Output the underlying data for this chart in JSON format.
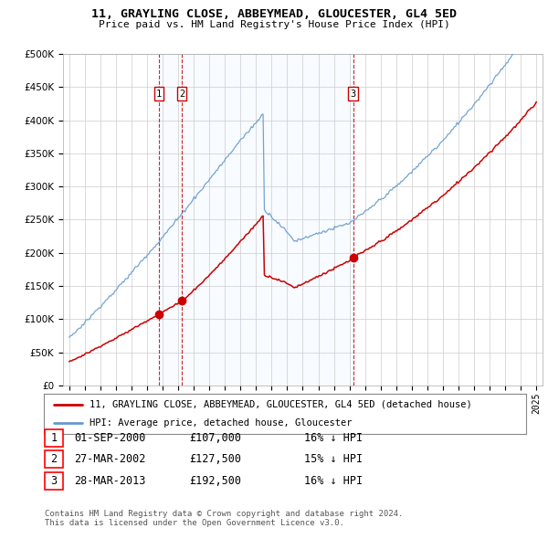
{
  "title": "11, GRAYLING CLOSE, ABBEYMEAD, GLOUCESTER, GL4 5ED",
  "subtitle": "Price paid vs. HM Land Registry's House Price Index (HPI)",
  "legend_house": "11, GRAYLING CLOSE, ABBEYMEAD, GLOUCESTER, GL4 5ED (detached house)",
  "legend_hpi": "HPI: Average price, detached house, Gloucester",
  "house_color": "#cc0000",
  "hpi_color": "#6699cc",
  "hpi_fill_color": "#ddeeff",
  "sale_dates": [
    2000.75,
    2002.23,
    2013.23
  ],
  "sale_prices": [
    107000,
    127500,
    192500
  ],
  "sale_labels": [
    "1",
    "2",
    "3"
  ],
  "table_rows": [
    [
      "1",
      "01-SEP-2000",
      "£107,000",
      "16% ↓ HPI"
    ],
    [
      "2",
      "27-MAR-2002",
      "£127,500",
      "15% ↓ HPI"
    ],
    [
      "3",
      "28-MAR-2013",
      "£192,500",
      "16% ↓ HPI"
    ]
  ],
  "footnote": "Contains HM Land Registry data © Crown copyright and database right 2024.\nThis data is licensed under the Open Government Licence v3.0.",
  "ylim": [
    0,
    500000
  ],
  "yticks": [
    0,
    50000,
    100000,
    150000,
    200000,
    250000,
    300000,
    350000,
    400000,
    450000,
    500000
  ],
  "xlim_start": 1994.6,
  "xlim_end": 2025.4,
  "background_color": "#ffffff",
  "grid_color": "#cccccc"
}
